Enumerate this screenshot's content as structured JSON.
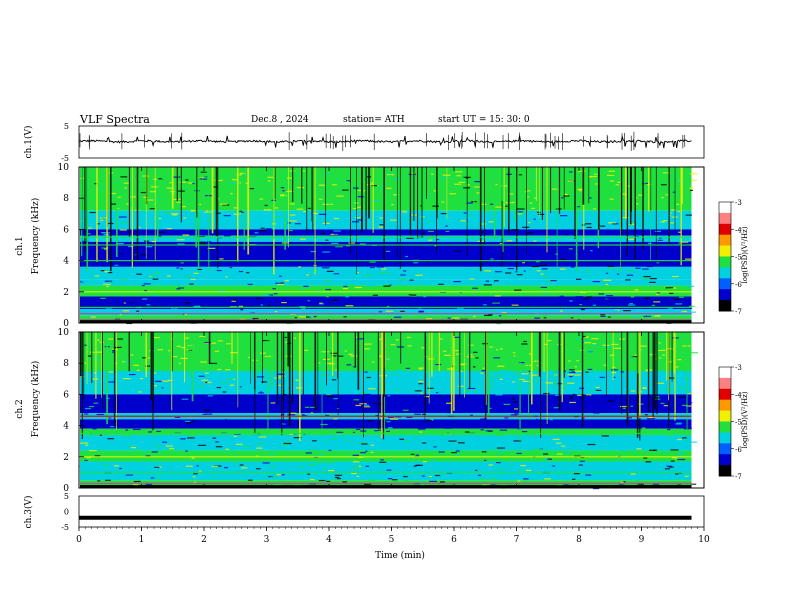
{
  "header": {
    "title": "VLF  Spectra",
    "date": "Dec.8  , 2024",
    "station": "station= ATH",
    "start_ut": "start  UT  =    15: 30: 0"
  },
  "panels": {
    "ch1_waveform_label": "ch.1(V)",
    "ch1_spectrogram_label": "ch.1",
    "ch2_spectrogram_label": "ch.2",
    "frequency_label": "Frequency  (kHz)",
    "ch3_waveform_label": "ch.3(V)",
    "colorbar_label": "log(PSD)(V²/Hz)"
  },
  "colors": {
    "low": "#000000",
    "blue": "#0000cc",
    "cyan": "#00d0e0",
    "green": "#20e040",
    "yellow": "#f0f000",
    "red": "#e00000",
    "high": "#ffffff"
  },
  "chart_data": [
    {
      "type": "line",
      "id": "ch1_waveform",
      "ylabel": "ch.1(V)",
      "ylim": [
        -5,
        5
      ],
      "yticks": [
        "5",
        "-5"
      ],
      "xlim": [
        0,
        10
      ],
      "baseline": 0.2,
      "approx_spread": 1.0
    },
    {
      "type": "heatmap",
      "id": "ch1_spectrogram",
      "ylabel": "Frequency  (kHz)",
      "ylim": [
        0,
        10
      ],
      "yticks": [
        "0",
        "2",
        "4",
        "6",
        "8",
        "10"
      ],
      "xlim": [
        0,
        10
      ],
      "data_extent_min": 9.8,
      "bands_khz": [
        0.2,
        0.6,
        1.0,
        2.0,
        4.0,
        5.0,
        5.5
      ]
    },
    {
      "type": "heatmap",
      "id": "ch2_spectrogram",
      "ylabel": "Frequency  (kHz)",
      "ylim": [
        0,
        10
      ],
      "yticks": [
        "0",
        "2",
        "4",
        "6",
        "8",
        "10"
      ],
      "xlim": [
        0,
        10
      ],
      "data_extent_min": 9.8,
      "bands_khz": [
        0.3,
        1.0,
        2.0,
        3.5,
        4.6
      ]
    },
    {
      "type": "line",
      "id": "ch3_waveform",
      "ylabel": "ch.3(V)",
      "ylim": [
        -5,
        5
      ],
      "yticks": [
        "5",
        "0",
        "-5"
      ],
      "xlim": [
        0,
        10
      ],
      "xticks": [
        "0",
        "1",
        "2",
        "3",
        "4",
        "5",
        "6",
        "7",
        "8",
        "9",
        "10"
      ],
      "xlabel": "Time  (min)",
      "baseline": -2.0
    },
    {
      "type": "colorbar",
      "id": "colorbar_ch1",
      "label": "log(PSD)(V²/Hz)",
      "range": [
        -7,
        -3
      ],
      "ticks": [
        "-3",
        "-4",
        "-5",
        "-6",
        "-7"
      ]
    },
    {
      "type": "colorbar",
      "id": "colorbar_ch2",
      "label": "log(PSD)(V²/Hz)",
      "range": [
        -7,
        -3
      ],
      "ticks": [
        "-3",
        "-4",
        "-5",
        "-6",
        "-7"
      ]
    }
  ]
}
